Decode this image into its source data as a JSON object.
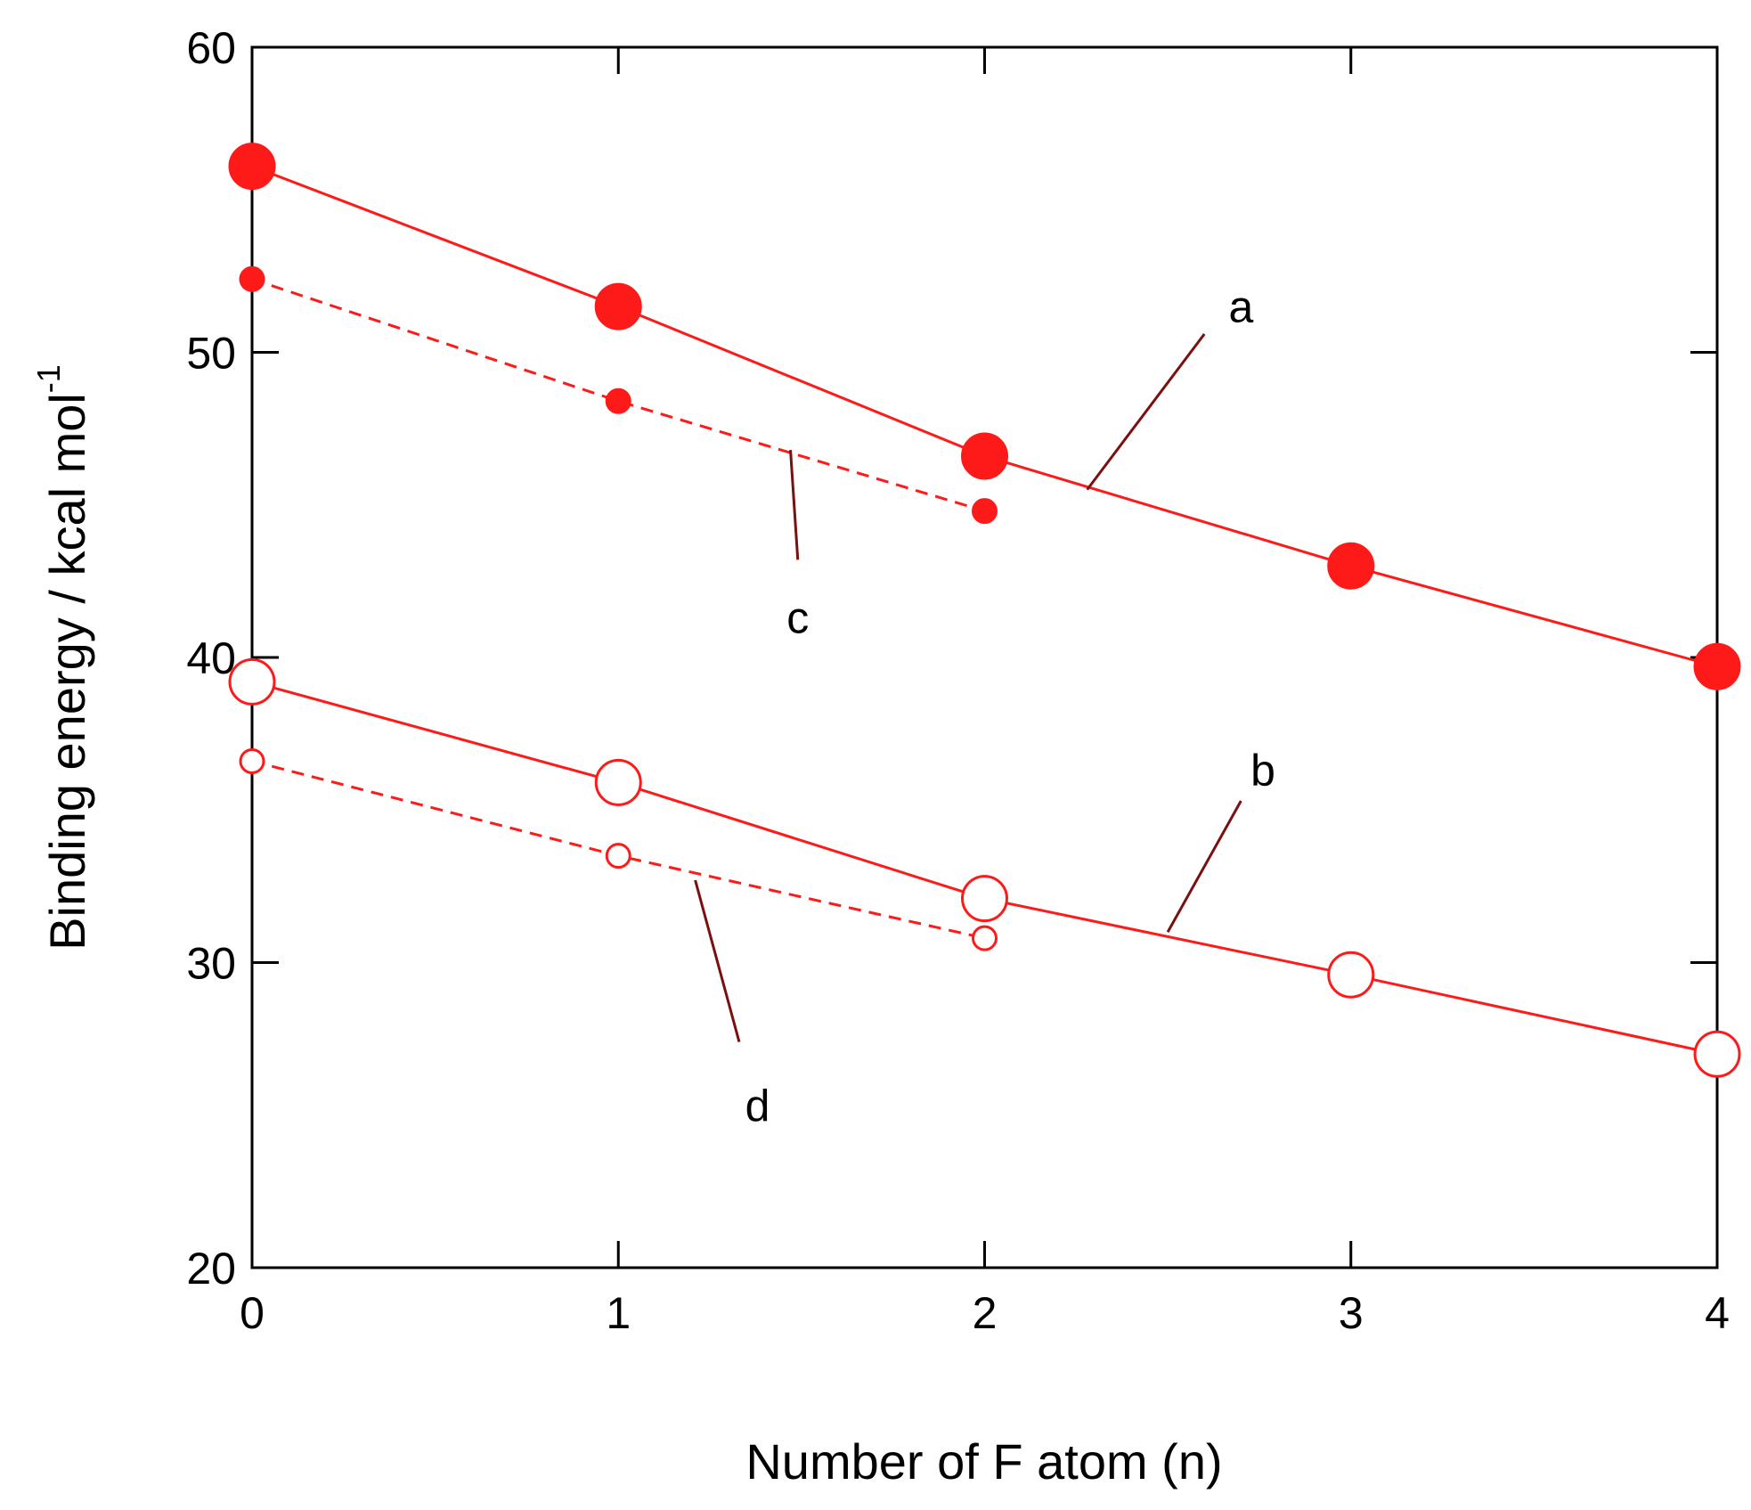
{
  "chart_data": {
    "type": "line",
    "title": "",
    "xlabel": "Number of F atom (n)",
    "ylabel": "Binding energy / kcal mol",
    "ylabel_superscript": "-1",
    "xlim": [
      0,
      4
    ],
    "ylim": [
      20,
      60
    ],
    "xticks": [
      "0",
      "1",
      "2",
      "3",
      "4"
    ],
    "yticks": [
      "20",
      "30",
      "40",
      "50",
      "60"
    ],
    "grid": false,
    "legend": "none",
    "series": [
      {
        "name": "a",
        "x": [
          0,
          1,
          2,
          3,
          4
        ],
        "values": [
          56.1,
          51.5,
          46.6,
          43.0,
          39.7
        ],
        "marker": "filled-large",
        "line": "solid",
        "color": "#ff1a1a"
      },
      {
        "name": "b",
        "x": [
          0,
          1,
          2,
          3,
          4
        ],
        "values": [
          39.2,
          35.9,
          32.1,
          29.6,
          27.0
        ],
        "marker": "open-large",
        "line": "solid",
        "color": "#ff1a1a"
      },
      {
        "name": "c",
        "x": [
          0,
          1,
          2
        ],
        "values": [
          52.4,
          48.4,
          44.8
        ],
        "marker": "filled-small",
        "line": "dashed",
        "color": "#ff1a1a"
      },
      {
        "name": "d",
        "x": [
          0,
          1,
          2
        ],
        "values": [
          36.6,
          33.5,
          30.8
        ],
        "marker": "open-small",
        "line": "dashed",
        "color": "#ff1a1a"
      }
    ],
    "annotation_line_color": "#7a1010"
  }
}
